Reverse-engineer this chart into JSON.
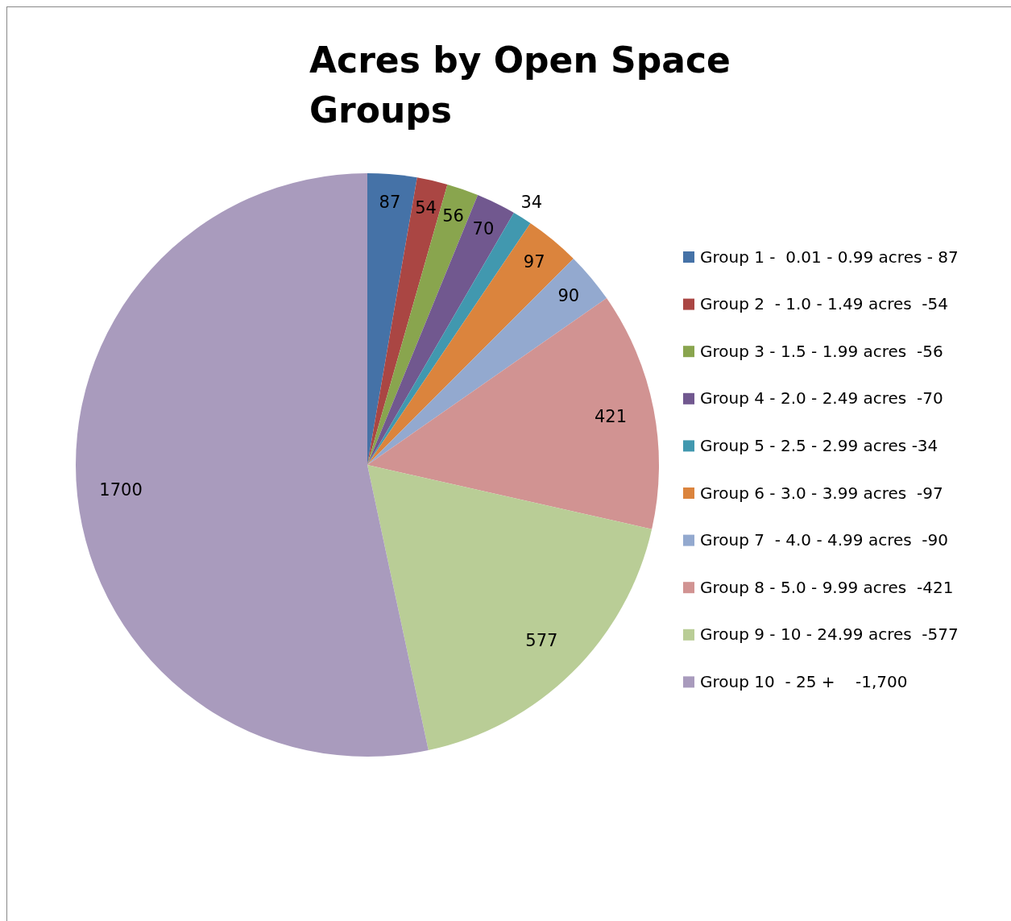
{
  "chart_data": {
    "type": "pie",
    "title": "Acres by Open Space Groups",
    "categories": [
      "Group 1 -  0.01 - 0.99 acres - 87",
      "Group 2  - 1.0 - 1.49 acres  -54",
      "Group 3 - 1.5 - 1.99 acres  -56",
      "Group 4 - 2.0 - 2.49 acres  -70",
      "Group 5 - 2.5 - 2.99 acres -34",
      "Group 6 - 3.0 - 3.99 acres  -97",
      "Group 7  - 4.0 - 4.99 acres  -90",
      "Group 8 - 5.0 - 9.99 acres  -421",
      "Group 9 - 10 - 24.99 acres  -577",
      "Group 10  - 25 +    -1,700"
    ],
    "values": [
      87,
      54,
      56,
      70,
      34,
      97,
      90,
      421,
      577,
      1700
    ],
    "colors": [
      "#4572a7",
      "#aa4643",
      "#89a54e",
      "#71588f",
      "#4198af",
      "#db843d",
      "#93a9cf",
      "#d19392",
      "#b9cd96",
      "#a99bbd"
    ],
    "data_labels": true,
    "legend": "right"
  }
}
